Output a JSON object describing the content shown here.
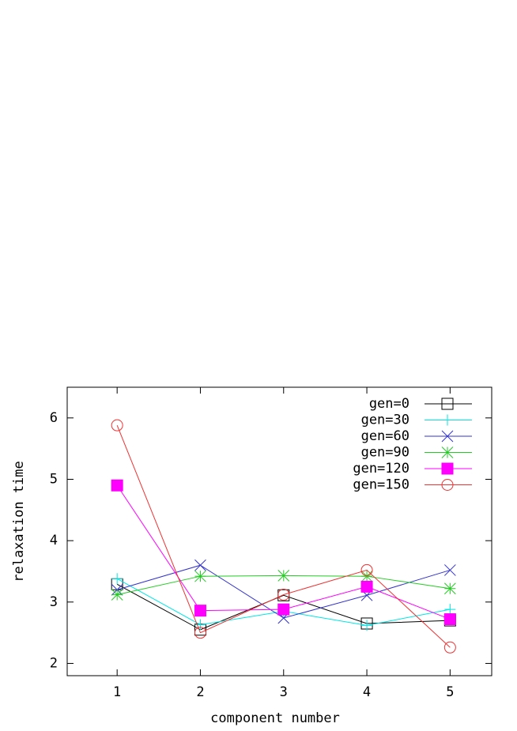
{
  "chart_data": {
    "type": "line",
    "x_label": "component number",
    "y_label": "relaxation time",
    "x": [
      1,
      2,
      3,
      4,
      5
    ],
    "xlim": [
      0.4,
      5.5
    ],
    "xticks": [
      1,
      2,
      3,
      4,
      5
    ],
    "ylim": [
      1.8,
      6.5
    ],
    "yticks": [
      2,
      3,
      4,
      5,
      6
    ],
    "legend": "top-right",
    "series": [
      {
        "name": "gen=0",
        "color": "#000000",
        "marker": "square",
        "values": [
          3.29,
          2.55,
          3.11,
          2.65,
          2.7
        ]
      },
      {
        "name": "gen=30",
        "color": "#00e5e5",
        "marker": "plus",
        "values": [
          3.38,
          2.63,
          2.85,
          2.62,
          2.88
        ]
      },
      {
        "name": "gen=60",
        "color": "#3333cc",
        "marker": "cross",
        "values": [
          3.2,
          3.6,
          2.74,
          3.11,
          3.52
        ]
      },
      {
        "name": "gen=90",
        "color": "#22cc22",
        "marker": "star",
        "values": [
          3.12,
          3.42,
          3.43,
          3.42,
          3.22
        ]
      },
      {
        "name": "gen=120",
        "color": "#ff00ff",
        "marker": "filled-square",
        "values": [
          4.9,
          2.86,
          2.88,
          3.25,
          2.72
        ]
      },
      {
        "name": "gen=150",
        "color": "#ee3333",
        "marker": "circle",
        "values": [
          5.88,
          2.5,
          3.12,
          3.52,
          2.26
        ]
      }
    ]
  }
}
